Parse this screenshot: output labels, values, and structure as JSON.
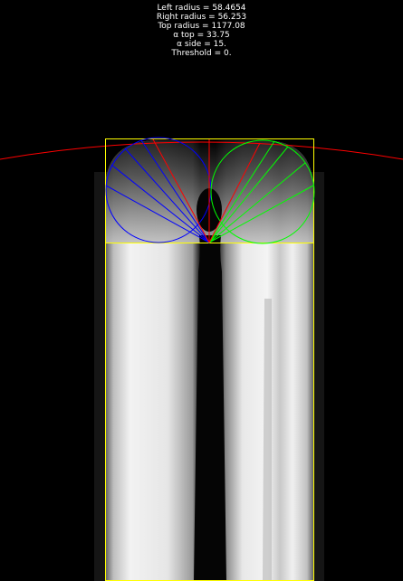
{
  "readouts": {
    "left_radius": "Left radius = 58.4654",
    "right_radius": "Right radius = 56.253",
    "top_radius": "Top radius = 1177.08",
    "alpha_top": "α top = 33.75",
    "alpha_side": "α side = 15.",
    "threshold": "Threshold = 0."
  },
  "colors": {
    "background": "#000000",
    "box": "#ffff00",
    "left_circle": "#0000ff",
    "right_circle": "#00ff00",
    "top_arc": "#ff0000",
    "text": "#ffffff"
  }
}
